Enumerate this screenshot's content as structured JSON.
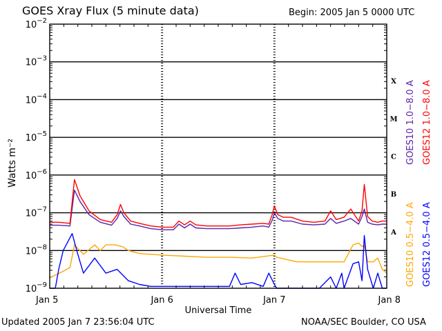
{
  "header": {
    "title": "GOES Xray Flux (5 minute data)",
    "begin": "Begin:  2005 Jan 5 0000 UTC"
  },
  "footer": {
    "updated": "Updated 2005 Jan  7 23:56:04 UTC",
    "credit": "NOAA/SEC Boulder, CO USA"
  },
  "chart_data": {
    "type": "line",
    "title": "GOES Xray Flux (5 minute data)",
    "xlabel": "Universal Time",
    "ylabel": "Watts m⁻²",
    "y_scale": "log",
    "ylim": [
      1e-09,
      0.01
    ],
    "xlim": [
      0,
      3
    ],
    "grid": true,
    "x_ticks": [
      {
        "value": 0,
        "label": "Jan 5"
      },
      {
        "value": 1,
        "label": "Jan 6"
      },
      {
        "value": 2,
        "label": "Jan 7"
      },
      {
        "value": 3,
        "label": "Jan 8"
      }
    ],
    "y_ticks": [
      {
        "exp": -2,
        "label": "10",
        "sup": "−2"
      },
      {
        "exp": -3,
        "label": "10",
        "sup": "−3"
      },
      {
        "exp": -4,
        "label": "10",
        "sup": "−4"
      },
      {
        "exp": -5,
        "label": "10",
        "sup": "−5"
      },
      {
        "exp": -6,
        "label": "10",
        "sup": "−6"
      },
      {
        "exp": -7,
        "label": "10",
        "sup": "−7"
      },
      {
        "exp": -8,
        "label": "10",
        "sup": "−8"
      },
      {
        "exp": -9,
        "label": "10",
        "sup": "−9"
      }
    ],
    "flare_classes": [
      {
        "label": "X",
        "level": -3.5
      },
      {
        "label": "M",
        "level": -4.5
      },
      {
        "label": "C",
        "level": -5.5
      },
      {
        "label": "B",
        "level": -6.5
      },
      {
        "label": "A",
        "level": -7.5
      }
    ],
    "legend_position": "right (vertical)",
    "series": [
      {
        "name": "GOES10 1.0−8.0 A",
        "color": "#5a22aa",
        "x": [
          0,
          0.08,
          0.18,
          0.22,
          0.27,
          0.35,
          0.45,
          0.55,
          0.6,
          0.63,
          0.66,
          0.72,
          0.8,
          0.9,
          1.0,
          1.1,
          1.15,
          1.2,
          1.25,
          1.3,
          1.4,
          1.5,
          1.6,
          1.7,
          1.8,
          1.9,
          1.95,
          1.98,
          2.0,
          2.03,
          2.08,
          2.15,
          2.25,
          2.35,
          2.45,
          2.5,
          2.55,
          2.62,
          2.68,
          2.75,
          2.78,
          2.8,
          2.83,
          2.87,
          2.92,
          2.96,
          3.0
        ],
        "y": [
          -7.33,
          -7.33,
          -7.35,
          -6.4,
          -6.7,
          -7.05,
          -7.25,
          -7.33,
          -7.15,
          -6.95,
          -7.1,
          -7.3,
          -7.35,
          -7.42,
          -7.45,
          -7.45,
          -7.3,
          -7.4,
          -7.3,
          -7.4,
          -7.42,
          -7.42,
          -7.42,
          -7.4,
          -7.38,
          -7.35,
          -7.38,
          -7.2,
          -7.0,
          -7.15,
          -7.22,
          -7.22,
          -7.3,
          -7.32,
          -7.3,
          -7.15,
          -7.28,
          -7.22,
          -7.15,
          -7.3,
          -7.1,
          -6.9,
          -7.25,
          -7.3,
          -7.32,
          -7.3,
          -7.3
        ]
      },
      {
        "name": "GOES12 1.0−8.0 A",
        "color": "#ff0000",
        "x": [
          0,
          0.08,
          0.18,
          0.22,
          0.27,
          0.35,
          0.45,
          0.55,
          0.6,
          0.63,
          0.66,
          0.72,
          0.8,
          0.9,
          1.0,
          1.1,
          1.15,
          1.2,
          1.25,
          1.3,
          1.4,
          1.5,
          1.6,
          1.7,
          1.8,
          1.9,
          1.95,
          1.98,
          2.0,
          2.03,
          2.08,
          2.15,
          2.25,
          2.35,
          2.45,
          2.5,
          2.55,
          2.62,
          2.68,
          2.75,
          2.78,
          2.8,
          2.83,
          2.87,
          2.92,
          2.96,
          3.0
        ],
        "y": [
          -7.25,
          -7.25,
          -7.28,
          -6.12,
          -6.55,
          -6.95,
          -7.18,
          -7.25,
          -7.05,
          -6.78,
          -7.0,
          -7.22,
          -7.28,
          -7.35,
          -7.38,
          -7.38,
          -7.22,
          -7.32,
          -7.22,
          -7.32,
          -7.35,
          -7.35,
          -7.35,
          -7.32,
          -7.3,
          -7.28,
          -7.3,
          -7.05,
          -6.82,
          -7.05,
          -7.12,
          -7.12,
          -7.22,
          -7.25,
          -7.22,
          -6.95,
          -7.18,
          -7.12,
          -6.9,
          -7.22,
          -6.95,
          -6.25,
          -7.1,
          -7.22,
          -7.25,
          -7.22,
          -7.22
        ]
      },
      {
        "name": "GOES10 0.5−4.0 A",
        "color": "#ffa500",
        "x": [
          0,
          0.12,
          0.18,
          0.22,
          0.3,
          0.4,
          0.45,
          0.5,
          0.58,
          0.65,
          0.7,
          0.8,
          0.9,
          1.0,
          1.2,
          1.4,
          1.6,
          1.8,
          2.0,
          2.02,
          2.2,
          2.4,
          2.5,
          2.55,
          2.6,
          2.62,
          2.7,
          2.75,
          2.78,
          2.8,
          2.83,
          2.88,
          2.92,
          2.96,
          3.0
        ],
        "y": [
          -8.72,
          -8.55,
          -8.45,
          -7.85,
          -8.1,
          -7.85,
          -8.0,
          -7.85,
          -7.85,
          -7.9,
          -8.0,
          -8.08,
          -8.1,
          -8.12,
          -8.15,
          -8.18,
          -8.18,
          -8.2,
          -8.12,
          -8.18,
          -8.3,
          -8.3,
          -8.3,
          -8.3,
          -8.3,
          -8.3,
          -7.85,
          -7.8,
          -7.9,
          -7.85,
          -8.3,
          -8.3,
          -8.2,
          -8.5,
          -8.6
        ]
      },
      {
        "name": "GOES12 0.5−4.0 A",
        "color": "#0000ff",
        "x": [
          0,
          0.05,
          0.08,
          0.12,
          0.2,
          0.25,
          0.3,
          0.4,
          0.5,
          0.6,
          0.7,
          0.8,
          0.9,
          1.0,
          1.2,
          1.4,
          1.6,
          1.65,
          1.7,
          1.8,
          1.9,
          1.95,
          2.0,
          2.02,
          2.2,
          2.4,
          2.5,
          2.55,
          2.6,
          2.62,
          2.7,
          2.75,
          2.78,
          2.8,
          2.83,
          2.88,
          2.92,
          2.96,
          3.0
        ],
        "y": [
          -9.0,
          -9.0,
          -8.5,
          -8.0,
          -7.55,
          -8.1,
          -8.6,
          -8.2,
          -8.6,
          -8.5,
          -8.8,
          -8.9,
          -8.95,
          -8.95,
          -8.95,
          -8.95,
          -8.95,
          -8.6,
          -8.9,
          -8.85,
          -8.95,
          -8.6,
          -8.9,
          -9.0,
          -9.0,
          -9.0,
          -8.7,
          -9.0,
          -8.6,
          -9.0,
          -8.35,
          -8.3,
          -8.8,
          -7.6,
          -8.5,
          -9.0,
          -8.6,
          -9.0,
          -9.0
        ]
      }
    ]
  }
}
